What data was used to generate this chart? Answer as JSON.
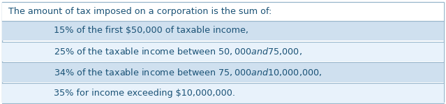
{
  "header_text": "The amount of tax imposed on a corporation is the sum of:",
  "rows": [
    "15% of the first $50,000 of taxable income,",
    "25% of the taxable income between $50,000 and $75,000,",
    "34% of the taxable income between $75,000 and $10,000,000,",
    "35% for income exceeding $10,000,000."
  ],
  "row_colors": [
    "#cfe0ef",
    "#e8f2fb",
    "#cfe0ef",
    "#e8f2fb"
  ],
  "header_bg": "#ffffff",
  "border_color": "#9ab8cc",
  "text_color": "#1a5276",
  "header_fontsize": 9.2,
  "row_fontsize": 9.2,
  "indent": 0.12,
  "fig_width": 6.39,
  "fig_height": 1.49
}
